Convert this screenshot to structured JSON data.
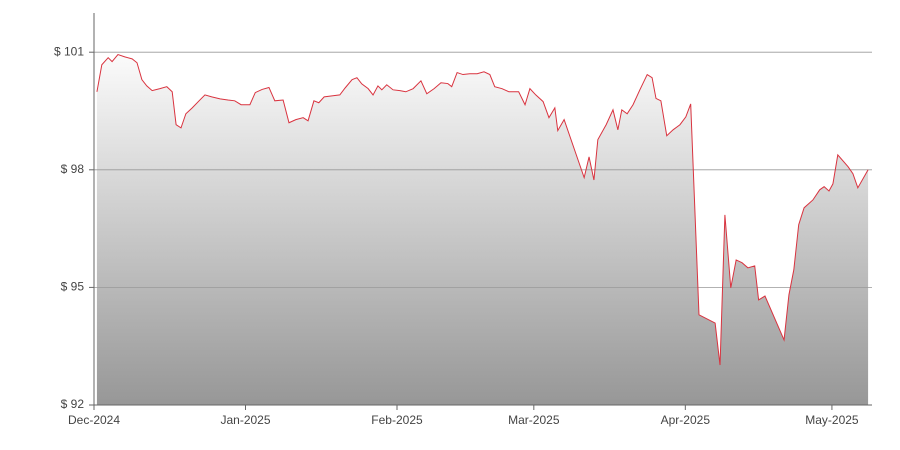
{
  "chart_data": {
    "type": "area-line",
    "x": [
      0.6,
      1.6,
      2.9,
      3.7,
      4.9,
      6.3,
      7.8,
      8.8,
      9.8,
      10.8,
      11.9,
      13.5,
      14.9,
      16.0,
      16.8,
      17.8,
      18.8,
      20.1,
      21.5,
      22.7,
      24.1,
      25.8,
      27.4,
      28.8,
      30.1,
      31.9,
      33.0,
      34.4,
      35.8,
      37.0,
      38.7,
      39.9,
      41.3,
      42.8,
      43.8,
      45.0,
      46.0,
      47.1,
      48.9,
      50.3,
      51.4,
      52.8,
      53.8,
      54.8,
      56.1,
      57.1,
      58.1,
      58.9,
      59.9,
      61.2,
      62.6,
      63.8,
      65.3,
      66.9,
      68.1,
      69.6,
      71.0,
      72.4,
      73.2,
      74.3,
      75.5,
      76.9,
      78.4,
      79.8,
      81.0,
      82.0,
      83.5,
      84.9,
      86.9,
      88.2,
      89.2,
      90.4,
      91.9,
      93.1,
      94.3,
      94.9,
      96.2,
      100.3,
      101.3,
      102.3,
      103.1,
      104.8,
      106.2,
      107.2,
      108.0,
      109.1,
      110.3,
      111.7,
      113.2,
      114.2,
      115.0,
      116.0,
      117.2,
      118.5,
      119.9,
      121.1,
      122.1,
      123.8,
      127.1,
      128.1,
      129.1,
      130.3,
      131.4,
      132.6,
      133.8,
      135.2,
      136.0,
      137.3,
      141.2,
      142.2,
      143.2,
      144.2,
      145.3,
      147.1,
      148.5,
      149.4,
      150.4,
      151.2,
      152.2,
      154.3,
      155.3,
      156.3,
      158.4
    ],
    "values": [
      99.99,
      100.68,
      100.86,
      100.76,
      100.94,
      100.88,
      100.83,
      100.73,
      100.3,
      100.14,
      100.02,
      100.07,
      100.12,
      99.99,
      99.15,
      99.07,
      99.43,
      99.58,
      99.76,
      99.91,
      99.86,
      99.81,
      99.78,
      99.76,
      99.66,
      99.66,
      99.97,
      100.05,
      100.1,
      99.76,
      99.78,
      99.2,
      99.28,
      99.33,
      99.25,
      99.76,
      99.71,
      99.86,
      99.89,
      99.91,
      100.09,
      100.3,
      100.35,
      100.19,
      100.07,
      99.91,
      100.14,
      100.04,
      100.17,
      100.04,
      100.02,
      99.99,
      100.07,
      100.27,
      99.94,
      100.07,
      100.22,
      100.2,
      100.12,
      100.48,
      100.43,
      100.45,
      100.45,
      100.5,
      100.43,
      100.12,
      100.07,
      99.99,
      99.99,
      99.66,
      100.07,
      99.91,
      99.74,
      99.33,
      99.58,
      99.0,
      99.28,
      97.8,
      98.33,
      97.74,
      98.77,
      99.15,
      99.53,
      99.02,
      99.53,
      99.43,
      99.66,
      100.04,
      100.43,
      100.35,
      99.82,
      99.76,
      98.87,
      99.02,
      99.15,
      99.35,
      99.68,
      94.3,
      94.09,
      93.02,
      96.85,
      94.99,
      95.7,
      95.63,
      95.5,
      95.55,
      94.68,
      94.78,
      93.66,
      94.81,
      95.45,
      96.6,
      97.03,
      97.23,
      97.49,
      97.57,
      97.46,
      97.64,
      98.38,
      98.08,
      97.9,
      97.54,
      98.0
    ],
    "color": "#d9333f",
    "xlim": [
      0,
      159.2
    ],
    "xticks": [
      {
        "value": 0,
        "label": "Dec-2024"
      },
      {
        "value": 31,
        "label": "Jan-2025"
      },
      {
        "value": 62,
        "label": "Feb-2025"
      },
      {
        "value": 90,
        "label": "Mar-2025"
      },
      {
        "value": 121,
        "label": "Apr-2025"
      },
      {
        "value": 151,
        "label": "May-2025"
      }
    ],
    "ylim": [
      92,
      102
    ],
    "yticks": [
      {
        "value": 92,
        "label": "$ 92"
      },
      {
        "value": 95,
        "label": "$ 95"
      },
      {
        "value": 98,
        "label": "$ 98"
      },
      {
        "value": 101,
        "label": "$ 101"
      }
    ],
    "grid": true
  }
}
